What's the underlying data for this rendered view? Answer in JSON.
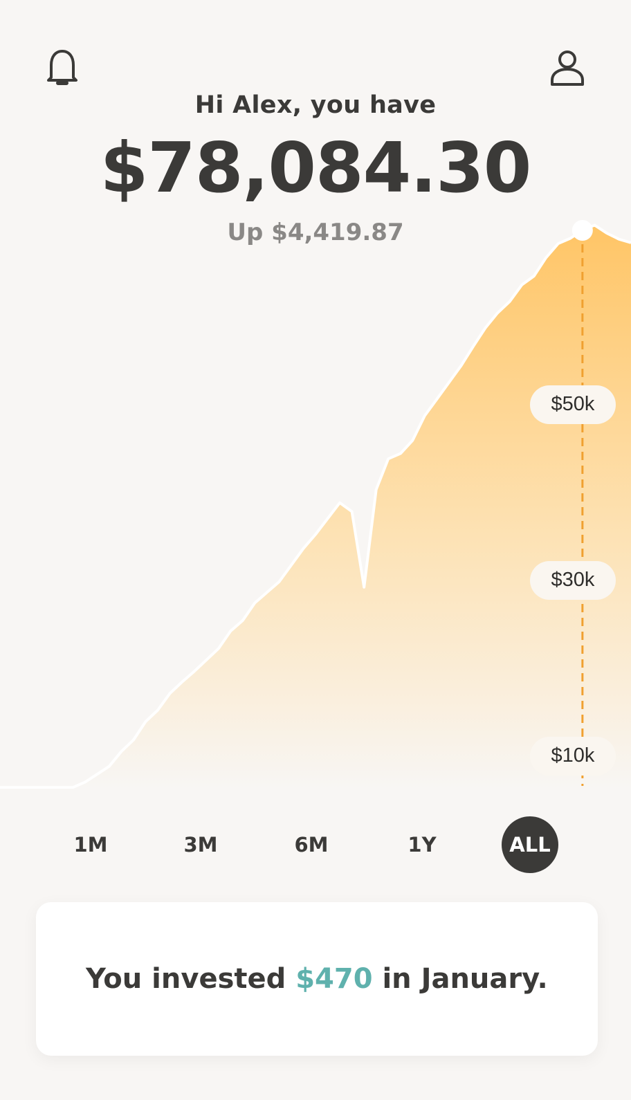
{
  "header": {
    "greeting": "Hi Alex, you have",
    "balance": "$78,084.30",
    "change": "Up $4,419.87"
  },
  "icons": {
    "notifications": "bell-icon",
    "profile": "user-icon"
  },
  "colors": {
    "background": "#f8f6f4",
    "text": "#3b3a38",
    "accent": "#5fb1ad",
    "chart_fill_top": "#ffc566",
    "chart_line": "#ffffff",
    "marker_line": "#f0a030"
  },
  "chart_data": {
    "type": "area",
    "y_tick_labels": [
      "$50k",
      "$30k",
      "$10k"
    ],
    "y_ticks": [
      50000,
      30000,
      10000
    ],
    "ylim": [
      0,
      74000
    ],
    "values": [
      6400,
      6400,
      6400,
      6400,
      6400,
      6400,
      6400,
      7000,
      7900,
      8800,
      10500,
      11800,
      13900,
      15200,
      17100,
      18400,
      19600,
      20900,
      22200,
      24200,
      25400,
      27400,
      28600,
      29800,
      31700,
      33600,
      35200,
      37000,
      38800,
      37800,
      29200,
      40300,
      43800,
      44400,
      45900,
      48700,
      50600,
      52500,
      54400,
      56600,
      58700,
      60400,
      61700,
      63600,
      64600,
      66700,
      68300,
      68900,
      69800,
      70400,
      69500,
      68800,
      68400
    ],
    "marker_index": 48,
    "grid": false,
    "legend": "none"
  },
  "ranges": {
    "items": [
      "1M",
      "3M",
      "6M",
      "1Y",
      "ALL"
    ],
    "selected": "ALL"
  },
  "card": {
    "prefix": "You invested",
    "amount": "$470",
    "suffix": "in January."
  }
}
